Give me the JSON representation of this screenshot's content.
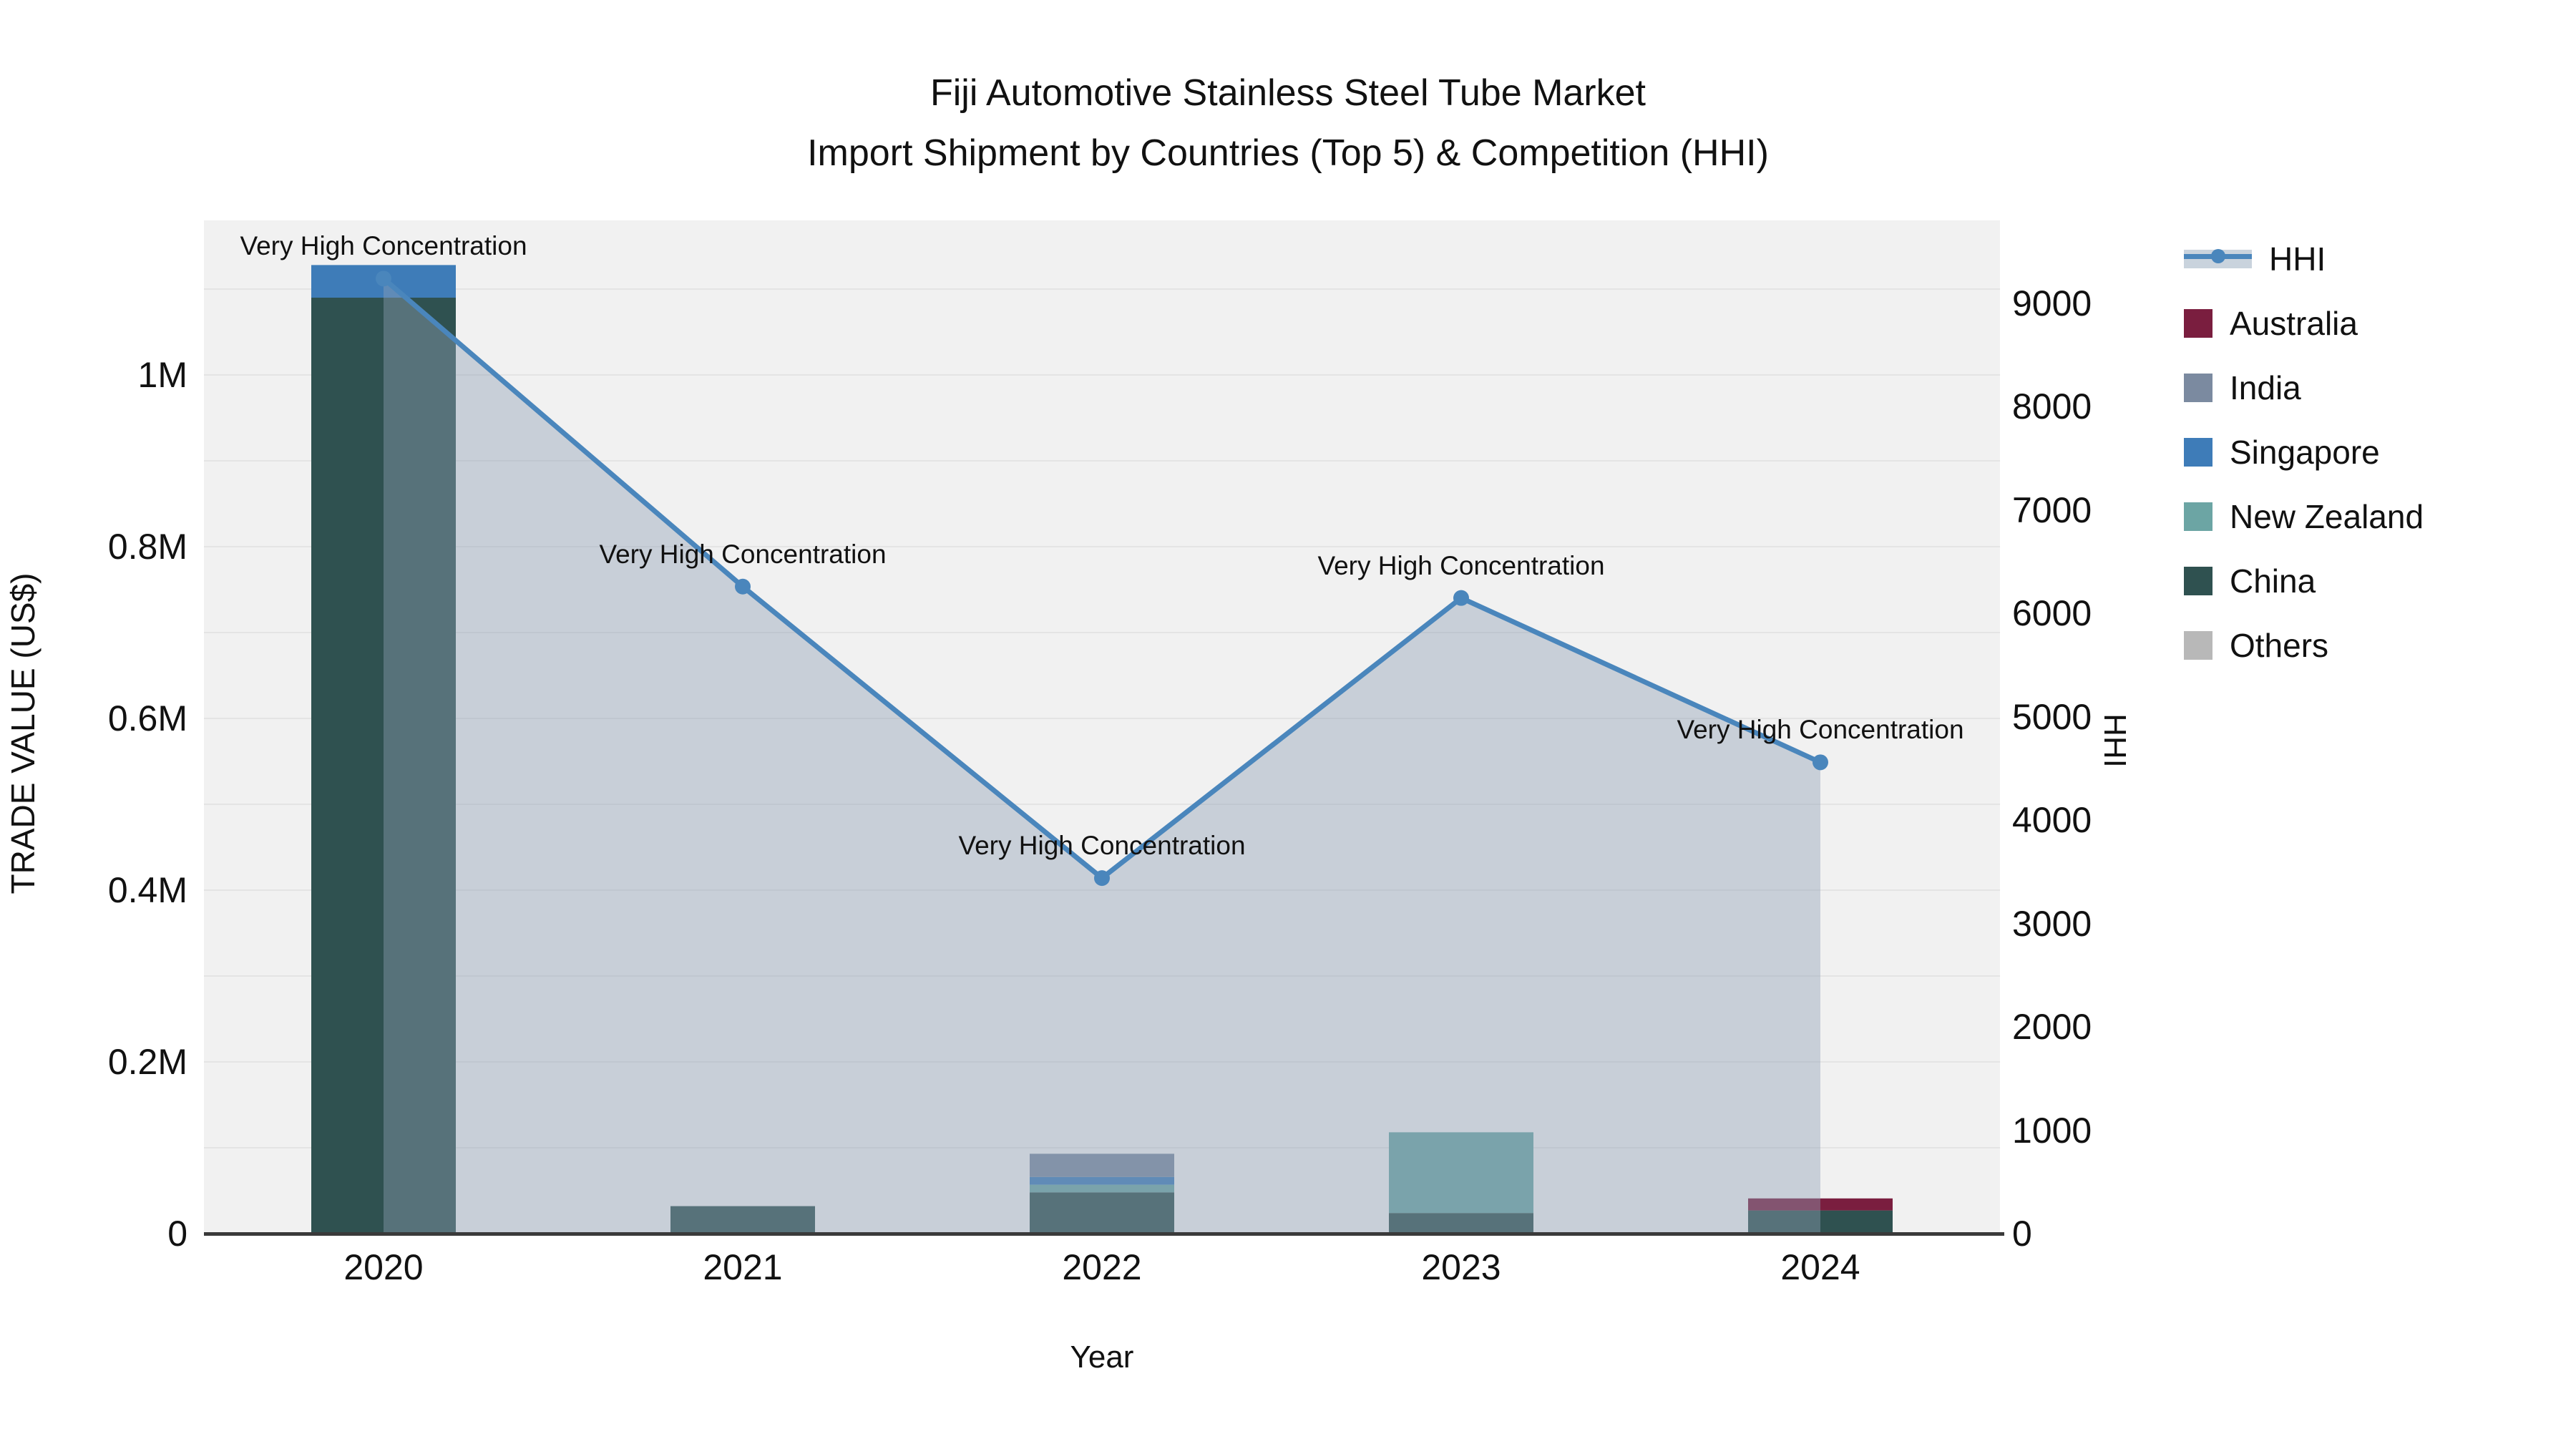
{
  "title": {
    "line1": "Fiji Automotive Stainless Steel Tube Market",
    "line2": "Import Shipment by Countries (Top 5) & Competition (HHI)"
  },
  "axes": {
    "x": {
      "label": "Year",
      "categories": [
        "2020",
        "2021",
        "2022",
        "2023",
        "2024"
      ]
    },
    "y_left": {
      "label": "TRADE VALUE (US$)",
      "ticks": [
        {
          "value": 0,
          "label": "0"
        },
        {
          "value": 200000,
          "label": "0.2M"
        },
        {
          "value": 400000,
          "label": "0.4M"
        },
        {
          "value": 600000,
          "label": "0.6M"
        },
        {
          "value": 800000,
          "label": "0.8M"
        },
        {
          "value": 1000000,
          "label": "1M"
        }
      ]
    },
    "y_right": {
      "label": "HHI",
      "ticks": [
        {
          "value": 0,
          "label": "0"
        },
        {
          "value": 1000,
          "label": "1000"
        },
        {
          "value": 2000,
          "label": "2000"
        },
        {
          "value": 3000,
          "label": "3000"
        },
        {
          "value": 4000,
          "label": "4000"
        },
        {
          "value": 5000,
          "label": "5000"
        },
        {
          "value": 6000,
          "label": "6000"
        },
        {
          "value": 7000,
          "label": "7000"
        },
        {
          "value": 8000,
          "label": "8000"
        },
        {
          "value": 9000,
          "label": "9000"
        }
      ]
    }
  },
  "legend": {
    "items": [
      {
        "id": "hhi",
        "label": "HHI",
        "type": "line",
        "color": "#4a86bc",
        "band_color": "#c9d3dd"
      },
      {
        "id": "australia",
        "label": "Australia",
        "type": "swatch",
        "color": "#7a1e3f"
      },
      {
        "id": "india",
        "label": "India",
        "type": "swatch",
        "color": "#7b8aa0"
      },
      {
        "id": "singapore",
        "label": "Singapore",
        "type": "swatch",
        "color": "#3e7cb8"
      },
      {
        "id": "new-zealand",
        "label": "New Zealand",
        "type": "swatch",
        "color": "#6ca5a4"
      },
      {
        "id": "china",
        "label": "China",
        "type": "swatch",
        "color": "#2f5150"
      },
      {
        "id": "others",
        "label": "Others",
        "type": "swatch",
        "color": "#b8b8b8"
      }
    ]
  },
  "chart_data": {
    "type": "combo: stacked bar (trade value, left axis) + line with area (HHI, right axis)",
    "categories": [
      "2020",
      "2021",
      "2022",
      "2023",
      "2024"
    ],
    "bar_unit": "US$",
    "stack_order_note": "series listed bottom-to-top of stack",
    "series": [
      {
        "name": "China",
        "color": "#2f5150",
        "values": [
          1090000,
          32000,
          48000,
          24000,
          27000
        ]
      },
      {
        "name": "New Zealand",
        "color": "#6ca5a4",
        "values": [
          0,
          0,
          9000,
          94000,
          0
        ]
      },
      {
        "name": "Singapore",
        "color": "#3e7cb8",
        "values": [
          38000,
          0,
          9000,
          0,
          0
        ]
      },
      {
        "name": "India",
        "color": "#7b8aa0",
        "values": [
          0,
          0,
          27000,
          0,
          0
        ]
      },
      {
        "name": "Australia",
        "color": "#7a1e3f",
        "values": [
          0,
          0,
          0,
          0,
          14000
        ]
      },
      {
        "name": "Others",
        "color": "#b8b8b8",
        "values": [
          0,
          0,
          0,
          0,
          0
        ]
      }
    ],
    "line_series": {
      "name": "HHI",
      "color": "#4a86bc",
      "area_fill": "rgba(143,159,181,0.42)",
      "values": [
        9240,
        6260,
        3440,
        6150,
        4560
      ]
    },
    "annotations": [
      {
        "index": 0,
        "text": "Very High Concentration"
      },
      {
        "index": 1,
        "text": "Very High Concentration"
      },
      {
        "index": 2,
        "text": "Very High Concentration"
      },
      {
        "index": 3,
        "text": "Very High Concentration"
      },
      {
        "index": 4,
        "text": "Very High Concentration"
      }
    ],
    "y_left_range": [
      0,
      1180000
    ],
    "y_right_range": [
      0,
      9803
    ],
    "grid_step_left": 100000,
    "grid_color": "#e4e4e4",
    "plot_background": "#f1f1f1"
  }
}
